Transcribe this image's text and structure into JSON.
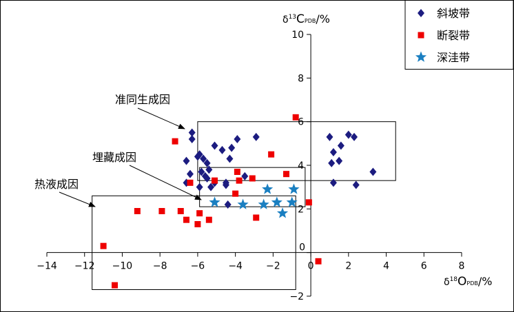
{
  "chart_data": {
    "type": "scatter",
    "xlim": [
      -14,
      8
    ],
    "ylim": [
      -2,
      10
    ],
    "x_ticks": [
      -14,
      -12,
      -10,
      -8,
      -6,
      -4,
      -2,
      0,
      2,
      4,
      6,
      8
    ],
    "y_ticks": [
      -2,
      0,
      2,
      4,
      6,
      8,
      10
    ],
    "xlabel": {
      "pre": "δ",
      "sup": "18",
      "main": "O",
      "sub": "PDB",
      "post": "/%"
    },
    "ylabel": {
      "pre": "δ",
      "sup": "13",
      "main": "C",
      "sub": "PDB",
      "post": "/%"
    },
    "series": [
      {
        "name": "斜坡带",
        "marker": "diamond",
        "color": "#1c1c80",
        "points": [
          [
            -6.3,
            5.5
          ],
          [
            -6.3,
            5.2
          ],
          [
            -5.9,
            4.5
          ],
          [
            -6.0,
            4.4
          ],
          [
            -5.7,
            4.3
          ],
          [
            -5.5,
            4.1
          ],
          [
            -6.6,
            4.2
          ],
          [
            -5.1,
            4.9
          ],
          [
            -4.7,
            4.7
          ],
          [
            -4.2,
            4.8
          ],
          [
            -4.3,
            4.3
          ],
          [
            -3.9,
            5.2
          ],
          [
            -2.9,
            5.3
          ],
          [
            -6.4,
            3.6
          ],
          [
            -5.8,
            3.7
          ],
          [
            -5.6,
            3.5
          ],
          [
            -5.4,
            3.8
          ],
          [
            -5.5,
            3.4
          ],
          [
            -5.3,
            3.0
          ],
          [
            -5.1,
            3.2
          ],
          [
            -6.6,
            3.2
          ],
          [
            -5.9,
            3.0
          ],
          [
            -4.5,
            3.1
          ],
          [
            -4.5,
            3.2
          ],
          [
            -3.5,
            3.5
          ],
          [
            -4.4,
            2.2
          ],
          [
            1.0,
            5.3
          ],
          [
            1.2,
            4.6
          ],
          [
            1.6,
            4.9
          ],
          [
            2.0,
            5.4
          ],
          [
            2.3,
            5.3
          ],
          [
            1.1,
            4.1
          ],
          [
            1.5,
            4.2
          ],
          [
            3.3,
            3.7
          ],
          [
            1.2,
            3.2
          ],
          [
            2.4,
            3.1
          ]
        ]
      },
      {
        "name": "断裂带",
        "marker": "square",
        "color": "#ee0000",
        "points": [
          [
            -0.8,
            6.2
          ],
          [
            -7.2,
            5.1
          ],
          [
            -2.1,
            4.5
          ],
          [
            -3.9,
            3.7
          ],
          [
            -3.8,
            3.3
          ],
          [
            -3.1,
            3.4
          ],
          [
            -1.3,
            3.6
          ],
          [
            -6.4,
            3.2
          ],
          [
            -5.1,
            3.3
          ],
          [
            -4.0,
            2.7
          ],
          [
            -9.2,
            1.9
          ],
          [
            -7.9,
            1.9
          ],
          [
            -6.9,
            1.9
          ],
          [
            -5.9,
            1.8
          ],
          [
            -6.6,
            1.5
          ],
          [
            -5.4,
            1.5
          ],
          [
            -6.0,
            1.3
          ],
          [
            -2.9,
            1.6
          ],
          [
            -0.1,
            2.3
          ],
          [
            -11.0,
            0.3
          ],
          [
            -10.4,
            -1.5
          ],
          [
            0.4,
            -0.4
          ]
        ]
      },
      {
        "name": "深洼带",
        "marker": "star",
        "color": "#1a7fc1",
        "points": [
          [
            -5.1,
            2.3
          ],
          [
            -3.6,
            2.2
          ],
          [
            -2.3,
            2.9
          ],
          [
            -0.9,
            2.9
          ],
          [
            -2.5,
            2.2
          ],
          [
            -1.8,
            2.3
          ],
          [
            -1.0,
            2.3
          ],
          [
            -1.5,
            1.8
          ]
        ]
      }
    ],
    "regions": [
      {
        "label": "准同生成因",
        "x": [
          -6.0,
          4.5
        ],
        "y": [
          3.3,
          6.0
        ]
      },
      {
        "label": "埋藏成因",
        "x": [
          -5.9,
          -0.3
        ],
        "y": [
          2.1,
          3.9
        ]
      },
      {
        "label": "热液成因",
        "x": [
          -11.6,
          -0.8
        ],
        "y": [
          -1.7,
          2.6
        ]
      }
    ],
    "legend_position": "top-right",
    "grid": false
  }
}
